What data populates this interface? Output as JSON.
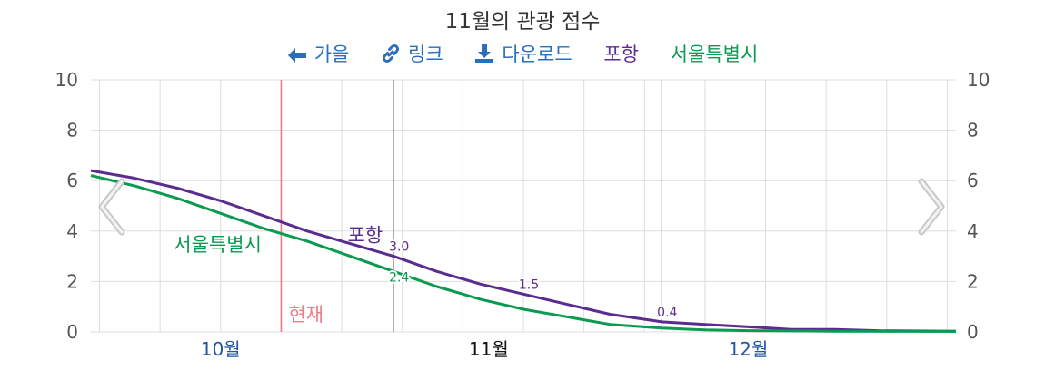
{
  "title": "11월의 관광 점수",
  "toolbar": {
    "back_label": "가을",
    "link_label": "링크",
    "download_label": "다운로드",
    "legend": [
      {
        "name": "포항",
        "color": "#5b2c8f"
      },
      {
        "name": "서울특별시",
        "color": "#0b9a50"
      }
    ]
  },
  "colors": {
    "pohang": "#5b2c8f",
    "seoul": "#0b9a50",
    "now_line": "#f07a86",
    "month_tick": "#2255a4",
    "grid": "#dddddd"
  },
  "now_label": "현재",
  "chart_data": {
    "type": "line",
    "title": "11월의 관광 점수",
    "xlabel": "",
    "ylabel": "",
    "ylim": [
      0,
      10
    ],
    "yticks": [
      0,
      2,
      4,
      6,
      8,
      10
    ],
    "y_axis_sides": [
      "left",
      "right"
    ],
    "xlim": [
      "2024-09-16",
      "2024-12-25"
    ],
    "x_month_labels": [
      {
        "date": "2024-10-01",
        "label": "10월",
        "current": false
      },
      {
        "date": "2024-11-01",
        "label": "11월",
        "current": true
      },
      {
        "date": "2024-12-01",
        "label": "12월",
        "current": false
      }
    ],
    "now_marker": "2024-10-08",
    "dark_gridlines": [
      "2024-10-21",
      "2024-11-21"
    ],
    "grid": true,
    "series": [
      {
        "name": "포항",
        "color": "#5b2c8f",
        "label_date": "2024-10-21",
        "points": [
          {
            "x": "2024-09-16",
            "y": 6.4
          },
          {
            "x": "2024-09-21",
            "y": 6.1
          },
          {
            "x": "2024-09-26",
            "y": 5.7
          },
          {
            "x": "2024-10-01",
            "y": 5.2
          },
          {
            "x": "2024-10-06",
            "y": 4.6
          },
          {
            "x": "2024-10-11",
            "y": 4.0
          },
          {
            "x": "2024-10-16",
            "y": 3.5
          },
          {
            "x": "2024-10-21",
            "y": 3.0
          },
          {
            "x": "2024-10-26",
            "y": 2.4
          },
          {
            "x": "2024-10-31",
            "y": 1.9
          },
          {
            "x": "2024-11-05",
            "y": 1.5
          },
          {
            "x": "2024-11-10",
            "y": 1.1
          },
          {
            "x": "2024-11-15",
            "y": 0.7
          },
          {
            "x": "2024-11-21",
            "y": 0.4
          },
          {
            "x": "2024-11-26",
            "y": 0.3
          },
          {
            "x": "2024-12-01",
            "y": 0.2
          },
          {
            "x": "2024-12-06",
            "y": 0.1
          },
          {
            "x": "2024-12-11",
            "y": 0.1
          },
          {
            "x": "2024-12-16",
            "y": 0.05
          },
          {
            "x": "2024-12-25",
            "y": 0.03
          }
        ],
        "data_labels": [
          {
            "x": "2024-10-21",
            "label": "3.0"
          },
          {
            "x": "2024-11-05",
            "label": "1.5"
          },
          {
            "x": "2024-11-21",
            "label": "0.4"
          }
        ]
      },
      {
        "name": "서울특별시",
        "color": "#0b9a50",
        "label_date": "2024-10-07",
        "points": [
          {
            "x": "2024-09-16",
            "y": 6.2
          },
          {
            "x": "2024-09-21",
            "y": 5.8
          },
          {
            "x": "2024-09-26",
            "y": 5.3
          },
          {
            "x": "2024-10-01",
            "y": 4.7
          },
          {
            "x": "2024-10-06",
            "y": 4.1
          },
          {
            "x": "2024-10-11",
            "y": 3.6
          },
          {
            "x": "2024-10-16",
            "y": 3.0
          },
          {
            "x": "2024-10-21",
            "y": 2.4
          },
          {
            "x": "2024-10-26",
            "y": 1.8
          },
          {
            "x": "2024-10-31",
            "y": 1.3
          },
          {
            "x": "2024-11-05",
            "y": 0.9
          },
          {
            "x": "2024-11-10",
            "y": 0.6
          },
          {
            "x": "2024-11-15",
            "y": 0.3
          },
          {
            "x": "2024-11-21",
            "y": 0.15
          },
          {
            "x": "2024-11-26",
            "y": 0.08
          },
          {
            "x": "2024-12-01",
            "y": 0.05
          },
          {
            "x": "2024-12-11",
            "y": 0.03
          },
          {
            "x": "2024-12-25",
            "y": 0.02
          }
        ],
        "data_labels": [
          {
            "x": "2024-10-21",
            "label": "2.4"
          }
        ]
      }
    ]
  }
}
